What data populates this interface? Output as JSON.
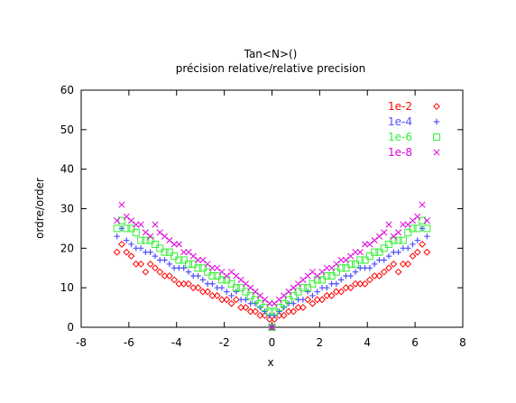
{
  "chart_data": {
    "type": "scatter",
    "title": "Tan<N>()",
    "subtitle": "précision relative/relative precision",
    "xlabel": "x",
    "ylabel": "ordre/order",
    "xlim": [
      -8,
      8
    ],
    "ylim": [
      0,
      60
    ],
    "xticks": [
      -8,
      -6,
      -4,
      -2,
      0,
      2,
      4,
      6,
      8
    ],
    "yticks": [
      0,
      10,
      20,
      30,
      40,
      50,
      60
    ],
    "grid": false,
    "legend_position": "top-right",
    "x": [
      -6.5,
      -6.3,
      -6.1,
      -5.9,
      -5.7,
      -5.5,
      -5.3,
      -5.1,
      -4.9,
      -4.7,
      -4.5,
      -4.3,
      -4.1,
      -3.9,
      -3.7,
      -3.5,
      -3.3,
      -3.1,
      -2.9,
      -2.7,
      -2.5,
      -2.3,
      -2.1,
      -1.9,
      -1.7,
      -1.5,
      -1.3,
      -1.1,
      -0.9,
      -0.7,
      -0.5,
      -0.3,
      -0.1,
      0.0,
      0.1,
      0.3,
      0.5,
      0.7,
      0.9,
      1.1,
      1.3,
      1.5,
      1.7,
      1.9,
      2.1,
      2.3,
      2.5,
      2.7,
      2.9,
      3.1,
      3.3,
      3.5,
      3.7,
      3.9,
      4.1,
      4.3,
      4.5,
      4.7,
      4.9,
      5.1,
      5.3,
      5.5,
      5.7,
      5.9,
      6.1,
      6.3,
      6.5
    ],
    "series": [
      {
        "name": "1e-2",
        "color": "#ff0000",
        "marker": "diamond",
        "values": [
          19,
          21,
          19,
          18,
          16,
          16,
          14,
          16,
          15,
          14,
          13,
          13,
          12,
          11,
          11,
          11,
          10,
          10,
          9,
          9,
          8,
          8,
          7,
          7,
          6,
          7,
          5,
          5,
          4,
          4,
          3,
          3,
          2,
          0,
          2,
          3,
          3,
          4,
          4,
          5,
          5,
          7,
          6,
          7,
          7,
          8,
          8,
          9,
          9,
          10,
          10,
          11,
          11,
          11,
          12,
          13,
          13,
          14,
          15,
          16,
          14,
          16,
          16,
          18,
          19,
          21,
          19
        ]
      },
      {
        "name": "1e-4",
        "color": "#5050ff",
        "marker": "plus",
        "values": [
          23,
          25,
          22,
          21,
          20,
          20,
          19,
          19,
          18,
          17,
          17,
          16,
          15,
          15,
          15,
          14,
          13,
          13,
          12,
          11,
          11,
          10,
          10,
          9,
          8,
          9,
          7,
          7,
          6,
          6,
          5,
          4,
          3,
          0,
          3,
          4,
          5,
          6,
          6,
          7,
          7,
          9,
          8,
          9,
          10,
          10,
          11,
          11,
          12,
          13,
          13,
          14,
          15,
          15,
          15,
          16,
          17,
          17,
          18,
          19,
          19,
          20,
          20,
          21,
          22,
          25,
          23
        ]
      },
      {
        "name": "1e-6",
        "color": "#33ee33",
        "marker": "square",
        "values": [
          25,
          27,
          25,
          25,
          24,
          22,
          22,
          22,
          21,
          20,
          19,
          19,
          18,
          17,
          17,
          16,
          16,
          15,
          15,
          14,
          13,
          13,
          12,
          12,
          11,
          10,
          10,
          9,
          8,
          7,
          6,
          5,
          4,
          0,
          4,
          5,
          6,
          7,
          8,
          9,
          10,
          10,
          11,
          12,
          12,
          13,
          13,
          14,
          15,
          15,
          16,
          16,
          17,
          17,
          18,
          19,
          19,
          20,
          21,
          22,
          22,
          22,
          24,
          25,
          25,
          27,
          25
        ]
      },
      {
        "name": "1e-8",
        "color": "#dd00dd",
        "marker": "cross",
        "values": [
          27,
          31,
          28,
          27,
          26,
          26,
          24,
          23,
          26,
          24,
          23,
          22,
          21,
          21,
          19,
          19,
          18,
          17,
          17,
          16,
          15,
          15,
          14,
          13,
          14,
          13,
          12,
          11,
          10,
          9,
          8,
          7,
          6,
          0,
          6,
          7,
          8,
          9,
          10,
          11,
          12,
          13,
          14,
          13,
          14,
          15,
          15,
          16,
          17,
          17,
          18,
          19,
          19,
          21,
          21,
          22,
          23,
          24,
          26,
          23,
          24,
          26,
          26,
          27,
          28,
          31,
          27
        ]
      }
    ]
  }
}
